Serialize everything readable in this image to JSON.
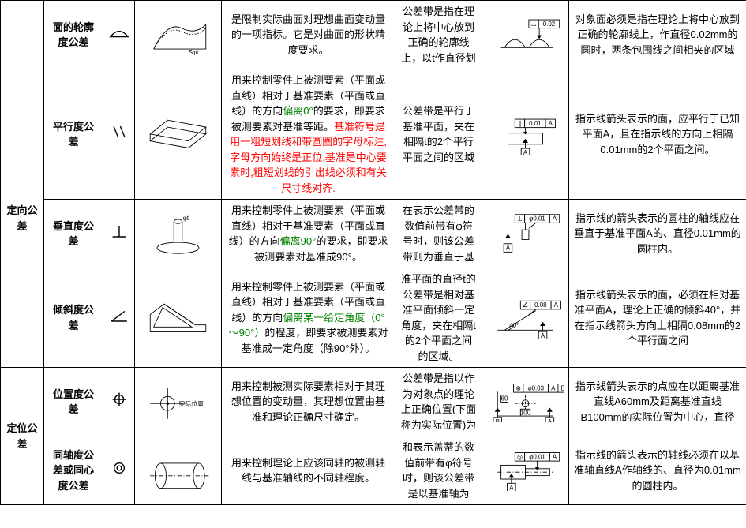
{
  "rows": [
    {
      "category": "",
      "name": "面的轮廓度公差",
      "symbol": "profile-surface",
      "desc": [
        {
          "t": "是限制实际曲面对理想曲面变动量的一项指标。它是对曲面的形状精度要求。",
          "cls": ""
        }
      ],
      "zone": "公差带是指在理论上将中心放到正确的轮廓线上，以t作直径划",
      "interpret": "对象面必须是指在理论上将中心放到正确的轮廓线上，作直径0.02mm的圆时，两条包围线之间相夹的区域",
      "fcf2": "⌓ 0.02"
    },
    {
      "category": "定向公差",
      "name": "平行度公差",
      "symbol": "parallelism",
      "desc": [
        {
          "t": "用来控制零件上被测要素（平面或直线）相对于基准要素（平面或直线）的方向",
          "cls": ""
        },
        {
          "t": "偏离0°",
          "cls": "green"
        },
        {
          "t": "的要求，即要求被测要素对基准等距。",
          "cls": ""
        },
        {
          "t": "基准符号是用一粗短划线和带圆圈的字母标注,字母方向始终是正位.基准是中心要素时,粗短划线的引出线必须和有关尺寸线对齐.",
          "cls": "red"
        }
      ],
      "zone": "公差带是平行于基准平面，夹在相隔t的2个平行平面之间的区域",
      "interpret": "指示线箭头表示的面，应平行于已知平面A，且在指示线的方向上相隔0.01mm的2个平面之间。",
      "fcf2": "∥ 0.01 A"
    },
    {
      "category": "",
      "name": "垂直度公差",
      "symbol": "perpendicularity",
      "desc": [
        {
          "t": "用来控制零件上被测要素（平面或直线）相对于基准要素（平面或直线）的方向",
          "cls": ""
        },
        {
          "t": "偏离90°",
          "cls": "green"
        },
        {
          "t": "的要求，即要求被测要素对基准成90°。",
          "cls": ""
        }
      ],
      "zone": "在表示公差带的数值前带有φ符号时，则该公差带则为垂直于基",
      "interpret": "指示线的箭头表示的圆柱的轴线应在垂直于基准平面A的、直径0.01mm的圆柱内。",
      "fcf2": "⊥ φ0.01 A"
    },
    {
      "category": "",
      "name": "倾斜度公差",
      "symbol": "angularity",
      "desc": [
        {
          "t": "用来控制零件上被测要素（平面或直线）相对于基准要素（平面或直线）的方向",
          "cls": ""
        },
        {
          "t": "偏离某一给定角度（0°～90°）",
          "cls": "green"
        },
        {
          "t": "的程度，即要求被测要素对基准成一定角度（除90°外）。",
          "cls": ""
        }
      ],
      "zone": "准平面的直径t的公差带是相对基准平面倾斜一定角度，夹在相隔t的2个平面之间的区域。",
      "interpret": "指示线箭头表示的面，必须在相对基准平面A，理论上正确的倾斜40°，并在指示线箭头方向上相隔0.08mm的2个平行面之间",
      "fcf2": "∠ 0.08 A"
    },
    {
      "category": "定位公差",
      "name": "位置度公差",
      "symbol": "position",
      "desc": [
        {
          "t": "用来控制被测实际要素相对于其理想位置的变动量，其理想位置由基准和理论正确尺寸确定。",
          "cls": ""
        }
      ],
      "zone": "公差带是指以作为对象点的理论上正确位置(下面称为实际位置)为",
      "interpret": "指示线箭头表示的点应在以距离基准直线A60mm及距离基准直线B100mm的实际位置为中心，直径",
      "fcf2": "⊕ φ0.03 A B"
    },
    {
      "category": "",
      "name": "同轴度公差或同心度公差",
      "symbol": "concentricity",
      "desc": [
        {
          "t": "用来控制理论上应该同轴的被测轴线与基准轴线的不同轴程度。",
          "cls": ""
        }
      ],
      "zone": "和表示盖蒂的数值前带有φ符号时，则该公差带是以基准轴为",
      "interpret": "指示线的箭头表示的轴线必须在以基准轴直线A作轴线的、直径为0.01mm的圆柱内。",
      "fcf2": "◎ φ0.01 A"
    }
  ],
  "categories": [
    {
      "label": "定向公差",
      "start": 1,
      "span": 3
    },
    {
      "label": "定位公差",
      "start": 4,
      "span": 2
    }
  ],
  "labels": {
    "spt": "Sφt",
    "datumA": "A",
    "angle40": "40°",
    "posLabel": "实际位置"
  }
}
